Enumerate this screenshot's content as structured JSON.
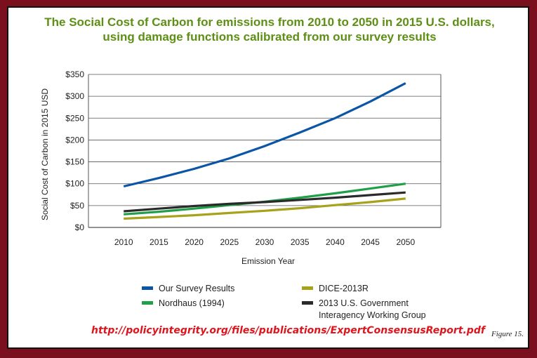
{
  "title": {
    "line1": "The Social Cost of Carbon for emissions from 2010 to 2050 in 2015 U.S. dollars,",
    "line2": "using damage functions calibrated from our survey results"
  },
  "source_url": "http://policyintegrity.org/files/publications/ExpertConsensusReport.pdf",
  "figure_label": "Figure 15.",
  "colors": {
    "frame": "#7a0f1e",
    "title": "#5c8f13",
    "url": "#e0141c"
  },
  "chart_data": {
    "type": "line",
    "xlabel": "Emission Year",
    "ylabel": "Social Cost of Carbon in 2015 USD",
    "x": [
      2010,
      2015,
      2020,
      2025,
      2030,
      2035,
      2040,
      2045,
      2050
    ],
    "xlim": [
      2005,
      2055
    ],
    "ylim": [
      0,
      350
    ],
    "y_ticks": [
      0,
      50,
      100,
      150,
      200,
      250,
      300,
      350
    ],
    "y_tick_labels": [
      "$0",
      "$50",
      "$100",
      "$150",
      "$200",
      "$250",
      "$300",
      "$350"
    ],
    "x_tick_labels": [
      "2010",
      "2015",
      "2020",
      "2025",
      "2030",
      "2035",
      "2040",
      "2045",
      "2050"
    ],
    "grid": "horizontal",
    "legend_position": "bottom",
    "series": [
      {
        "name": "Our Survey Results",
        "color": "#0a55a5",
        "values": [
          94,
          113,
          134,
          158,
          186,
          217,
          250,
          288,
          330
        ]
      },
      {
        "name": "Nordhaus (1994)",
        "color": "#1f9f48",
        "values": [
          30,
          36,
          43,
          51,
          59,
          68,
          78,
          89,
          100
        ]
      },
      {
        "name": "DICE-2013R",
        "color": "#a8a21a",
        "values": [
          20,
          24,
          28,
          33,
          38,
          44,
          51,
          58,
          66
        ]
      },
      {
        "name": "2013 U.S. Government Interagency Working Group",
        "color": "#2a2a2a",
        "values": [
          37,
          43,
          49,
          54,
          58,
          63,
          68,
          74,
          80
        ]
      }
    ],
    "legend": [
      {
        "label": "Our Survey Results",
        "label2": "",
        "color": "#0a55a5"
      },
      {
        "label": "DICE-2013R",
        "label2": "",
        "color": "#a8a21a"
      },
      {
        "label": "Nordhaus (1994)",
        "label2": "",
        "color": "#1f9f48"
      },
      {
        "label": "2013 U.S. Government",
        "label2": "Interagency Working Group",
        "color": "#2a2a2a"
      }
    ]
  }
}
